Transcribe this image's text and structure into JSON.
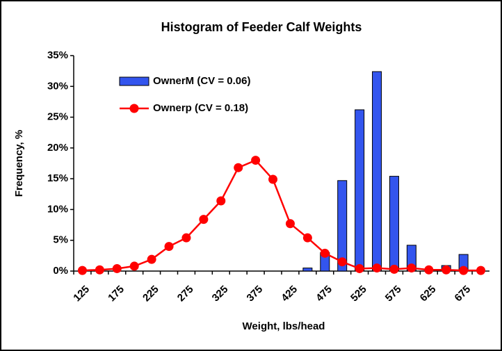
{
  "chart_data": {
    "type": "bar",
    "title": "Histogram of Feeder Calf Weights",
    "xlabel": "Weight, lbs/head",
    "ylabel": "Frequency, %",
    "categories": [
      125,
      null,
      175,
      null,
      225,
      null,
      275,
      null,
      325,
      null,
      375,
      null,
      425,
      null,
      475,
      null,
      525,
      null,
      575,
      null,
      625,
      null,
      675,
      null
    ],
    "series": [
      {
        "name": "OwnerM (CV = 0.06)",
        "type": "bar",
        "color": "#3355ee",
        "values": [
          0,
          0,
          0,
          0,
          0,
          0,
          0,
          0,
          0,
          0,
          0,
          0,
          0,
          0.5,
          3,
          14.7,
          26.2,
          32.4,
          15.4,
          4.2,
          0,
          0.9,
          2.7,
          0
        ]
      },
      {
        "name": "Ownerp (CV = 0.18)",
        "type": "line",
        "color": "#ff0000",
        "values": [
          0.1,
          0.2,
          0.4,
          0.8,
          1.9,
          4.0,
          5.4,
          8.4,
          11.4,
          16.8,
          18.0,
          14.9,
          7.7,
          5.4,
          2.9,
          1.5,
          0.4,
          0.5,
          0.3,
          0.5,
          0.2,
          0.2,
          0.1,
          0.1
        ]
      }
    ],
    "ylim": [
      0,
      35
    ],
    "yticks": [
      {
        "value": 0,
        "label": "0%"
      },
      {
        "value": 5,
        "label": "5%"
      },
      {
        "value": 10,
        "label": "10%"
      },
      {
        "value": 15,
        "label": "15%"
      },
      {
        "value": 20,
        "label": "20%"
      },
      {
        "value": 25,
        "label": "25%"
      },
      {
        "value": 30,
        "label": "30%"
      },
      {
        "value": 35,
        "label": "35%"
      }
    ],
    "grid": false,
    "legend": "upper-left"
  }
}
